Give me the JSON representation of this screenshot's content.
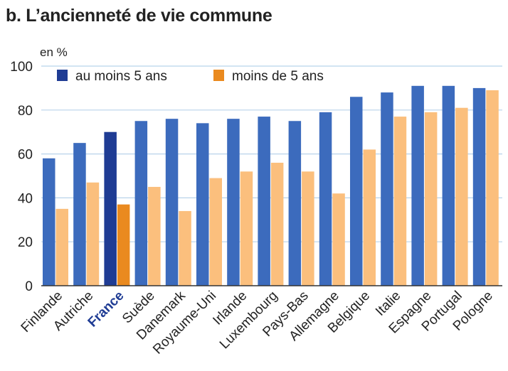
{
  "chart_data": {
    "type": "bar",
    "title": "b. L’ancienneté de vie commune",
    "ylabel": "en %",
    "ylim": [
      0,
      100
    ],
    "yticks": [
      0,
      20,
      40,
      60,
      80,
      100
    ],
    "grid": true,
    "legend_position": "top-left",
    "highlight_category": "France",
    "categories": [
      "Finlande",
      "Autriche",
      "France",
      "Suède",
      "Danemark",
      "Royaume-Uni",
      "Irlande",
      "Luxembourg",
      "Pays-Bas",
      "Allemagne",
      "Belgique",
      "Italie",
      "Espagne",
      "Portugal",
      "Pologne"
    ],
    "series": [
      {
        "name": "au moins 5 ans",
        "color": "#3c6bbd",
        "highlight_color": "#1f3c94",
        "values": [
          58,
          65,
          70,
          75,
          76,
          74,
          76,
          77,
          75,
          79,
          86,
          88,
          91,
          91,
          90
        ]
      },
      {
        "name": "moins de 5 ans",
        "color": "#fbbf7d",
        "highlight_color": "#ea8a1f",
        "values": [
          35,
          47,
          37,
          45,
          34,
          49,
          52,
          56,
          52,
          42,
          62,
          77,
          79,
          81,
          89
        ]
      }
    ]
  },
  "colors": {
    "grid": "#b8d3ea",
    "axis": "#333333"
  }
}
